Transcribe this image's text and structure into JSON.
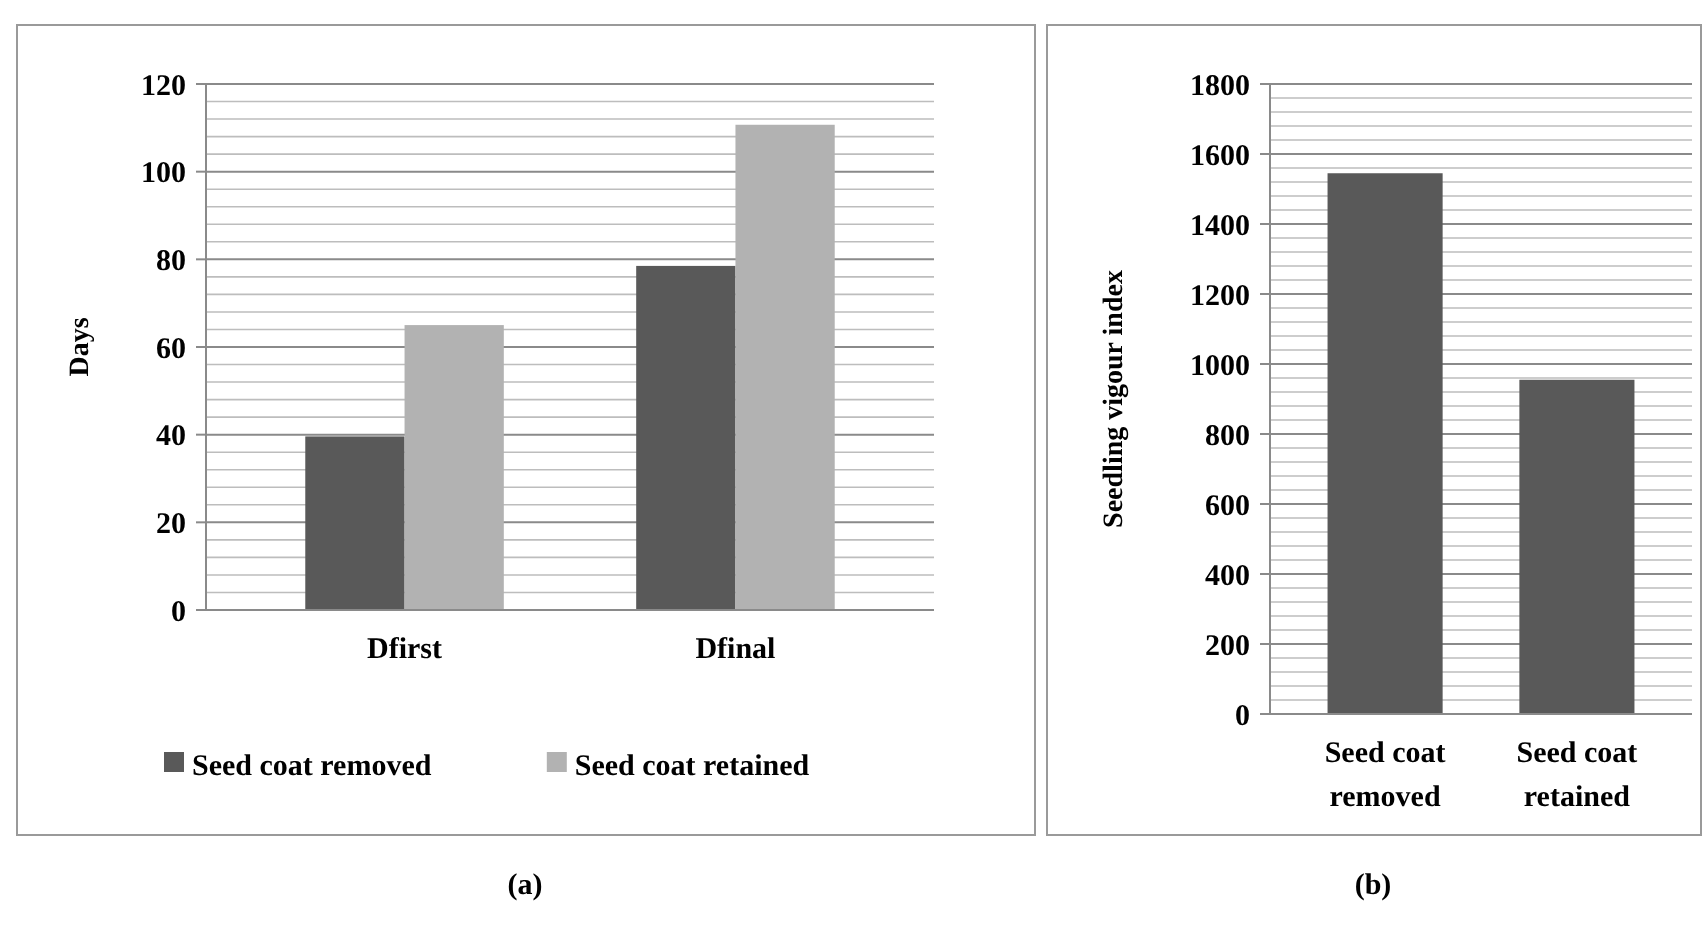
{
  "chart_data": [
    {
      "type": "bar",
      "categories": [
        "Dfirst",
        "Dfinal"
      ],
      "ylabel": "Days",
      "series": [
        {
          "name": "Seed coat removed",
          "color": "#595959",
          "values": [
            39.6,
            78.5
          ]
        },
        {
          "name": "Seed coat retained",
          "color": "#b2b2b2",
          "values": [
            65,
            110.7
          ]
        }
      ],
      "ylim": [
        0,
        120
      ],
      "yticks": [
        0,
        20,
        40,
        60,
        80,
        100,
        120
      ],
      "grid": "y",
      "legend": "bottom",
      "annotations": [
        "(a)"
      ]
    },
    {
      "type": "bar",
      "categories": [
        "Seed coat removed",
        "Seed coat retained"
      ],
      "ylabel": "Seedling vigour index",
      "series": [
        {
          "color": "#595959",
          "values": [
            1545,
            955
          ]
        }
      ],
      "ylim": [
        0,
        1800
      ],
      "yticks": [
        0,
        200,
        400,
        600,
        800,
        1000,
        1200,
        1400,
        1600,
        1800
      ],
      "grid": "y",
      "annotations": [
        "(b)"
      ]
    }
  ]
}
